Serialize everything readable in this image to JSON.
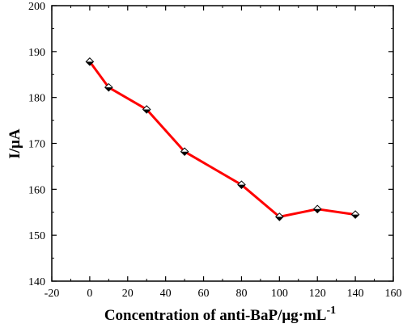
{
  "chart_data": {
    "type": "line",
    "title": "",
    "xlabel": "Concentration of anti-BaP/μg·mL",
    "xlabel_superscript": "-1",
    "ylabel": "I/μA",
    "xlim": [
      -20,
      160
    ],
    "ylim": [
      140,
      200
    ],
    "xticks": [
      -20,
      0,
      20,
      40,
      60,
      80,
      100,
      120,
      140,
      160
    ],
    "yticks": [
      140,
      150,
      160,
      170,
      180,
      190,
      200
    ],
    "grid": false,
    "legend": "none",
    "series": [
      {
        "x": [
          0,
          10,
          30,
          50,
          80,
          100,
          120,
          140
        ],
        "y": [
          187.8,
          182.2,
          177.4,
          168.2,
          161.0,
          154.0,
          155.7,
          154.5
        ],
        "line_color": "#ff0000",
        "marker": "diamond-half-filled",
        "marker_color": "#000000"
      }
    ]
  }
}
